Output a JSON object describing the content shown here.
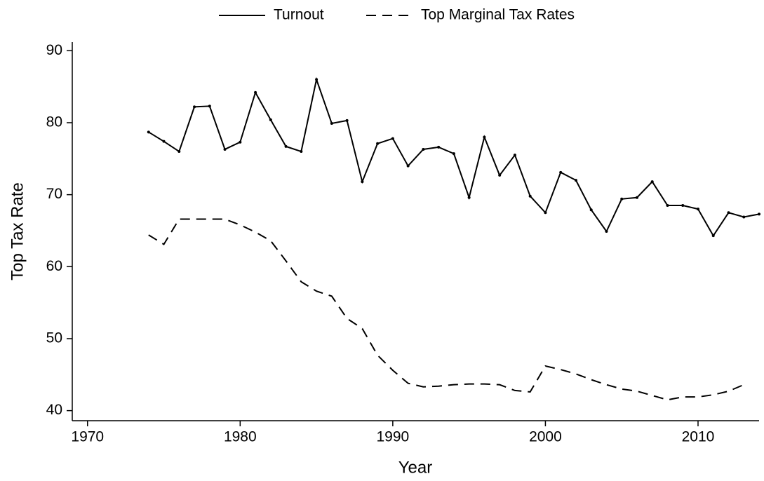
{
  "chart_data": {
    "type": "line",
    "x_label": "Year",
    "y_label": "Top Tax Rate",
    "x": [
      1974,
      1975,
      1976,
      1977,
      1978,
      1979,
      1980,
      1981,
      1982,
      1983,
      1984,
      1985,
      1986,
      1987,
      1988,
      1989,
      1990,
      1991,
      1992,
      1993,
      1994,
      1995,
      1996,
      1997,
      1998,
      1999,
      2000,
      2001,
      2002,
      2003,
      2004,
      2005,
      2006,
      2007,
      2008,
      2009,
      2010,
      2011,
      2012,
      2013,
      2014
    ],
    "series": [
      {
        "name": "Turnout",
        "color": "#000000",
        "style": "solid",
        "markers": true,
        "values": [
          78.7,
          77.4,
          76.0,
          82.2,
          82.3,
          76.3,
          77.3,
          84.2,
          80.4,
          76.7,
          76.0,
          86.0,
          79.9,
          80.3,
          71.8,
          77.1,
          77.8,
          74.0,
          76.3,
          76.6,
          75.7,
          69.6,
          78.0,
          72.7,
          75.5,
          69.8,
          67.5,
          73.1,
          72.0,
          67.9,
          64.9,
          69.4,
          69.6,
          71.8,
          68.5,
          68.5,
          68.0,
          64.3,
          67.5,
          66.9,
          67.3
        ]
      },
      {
        "name": "Top Marginal Tax Rates",
        "color": "#000000",
        "style": "dashed",
        "markers": false,
        "values": [
          64.4,
          63.1,
          66.6,
          66.6,
          66.6,
          66.6,
          65.8,
          64.8,
          63.6,
          60.8,
          57.9,
          56.6,
          55.9,
          52.8,
          51.4,
          47.7,
          45.6,
          43.8,
          43.3,
          43.4,
          43.6,
          43.7,
          43.7,
          43.6,
          42.8,
          42.6,
          46.2,
          45.7,
          45.1,
          44.3,
          43.6,
          43.0,
          42.7,
          42.1,
          41.5,
          41.9,
          41.9,
          42.2,
          42.7,
          43.6,
          null
        ]
      }
    ],
    "xlim": [
      1969,
      2014
    ],
    "xticks": [
      1970,
      1980,
      1990,
      2000,
      2010
    ],
    "ylim": [
      38.6,
      91.2
    ],
    "yticks": [
      40,
      50,
      60,
      70,
      80,
      90
    ],
    "grid": false,
    "legend": "top"
  }
}
